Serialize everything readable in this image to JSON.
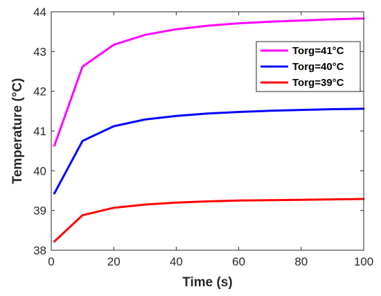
{
  "chart_data": {
    "type": "line",
    "xlabel": "Time (s)",
    "ylabel": "Temperature (°C)",
    "xlim": [
      0,
      100
    ],
    "ylim": [
      38,
      44
    ],
    "xticks": [
      0,
      20,
      40,
      60,
      80,
      100
    ],
    "yticks": [
      38,
      39,
      40,
      41,
      42,
      43,
      44
    ],
    "grid": false,
    "legend_position": "top-right",
    "x": [
      1,
      10,
      20,
      30,
      40,
      50,
      60,
      70,
      80,
      90,
      100
    ],
    "series": [
      {
        "name": "Torg=41°C",
        "color": "#ff00ff",
        "values": [
          40.63,
          42.62,
          43.17,
          43.42,
          43.56,
          43.65,
          43.71,
          43.75,
          43.78,
          43.81,
          43.83
        ]
      },
      {
        "name": "Torg=40°C",
        "color": "#0000ff",
        "values": [
          39.43,
          40.75,
          41.12,
          41.29,
          41.38,
          41.44,
          41.48,
          41.51,
          41.53,
          41.55,
          41.56
        ]
      },
      {
        "name": "Torg=39°C",
        "color": "#ff0000",
        "values": [
          38.22,
          38.88,
          39.07,
          39.15,
          39.2,
          39.23,
          39.25,
          39.26,
          39.27,
          39.28,
          39.29
        ]
      }
    ]
  }
}
